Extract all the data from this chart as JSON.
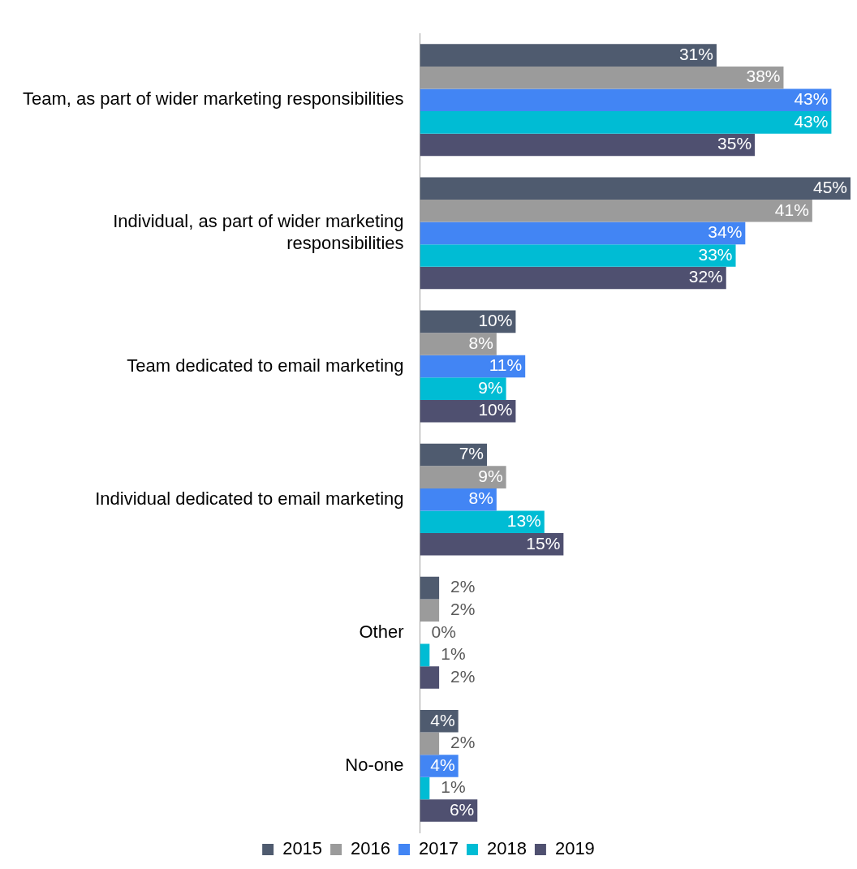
{
  "chart_data": {
    "type": "bar",
    "orientation": "horizontal",
    "categories": [
      "Team, as part of wider marketing responsibilities",
      "Individual, as part of wider marketing responsibilities",
      "Team dedicated to email marketing",
      "Individual dedicated to email marketing",
      "Other",
      "No-one"
    ],
    "series": [
      {
        "name": "2015",
        "color": "#4f5b6f",
        "values": [
          31,
          45,
          10,
          7,
          2,
          4
        ],
        "value_labels": [
          "31%",
          "45%",
          "10%",
          "7%",
          "2%",
          "4%"
        ]
      },
      {
        "name": "2016",
        "color": "#9b9b9b",
        "values": [
          38,
          41,
          8,
          9,
          2,
          2
        ],
        "value_labels": [
          "38%",
          "41%",
          "8%",
          "9%",
          "2%",
          "2%"
        ]
      },
      {
        "name": "2017",
        "color": "#4285f4",
        "values": [
          43,
          34,
          11,
          8,
          0,
          4
        ],
        "value_labels": [
          "43%",
          "34%",
          "11%",
          "8%",
          "0%",
          "4%"
        ]
      },
      {
        "name": "2018",
        "color": "#00bcd4",
        "values": [
          43,
          33,
          9,
          13,
          1,
          1
        ],
        "value_labels": [
          "43%",
          "33%",
          "9%",
          "13%",
          "1%",
          "1%"
        ]
      },
      {
        "name": "2019",
        "color": "#4f5070",
        "values": [
          35,
          32,
          10,
          15,
          2,
          6
        ],
        "value_labels": [
          "35%",
          "32%",
          "10%",
          "15%",
          "2%",
          "6%"
        ]
      }
    ],
    "legend": "bottom"
  }
}
